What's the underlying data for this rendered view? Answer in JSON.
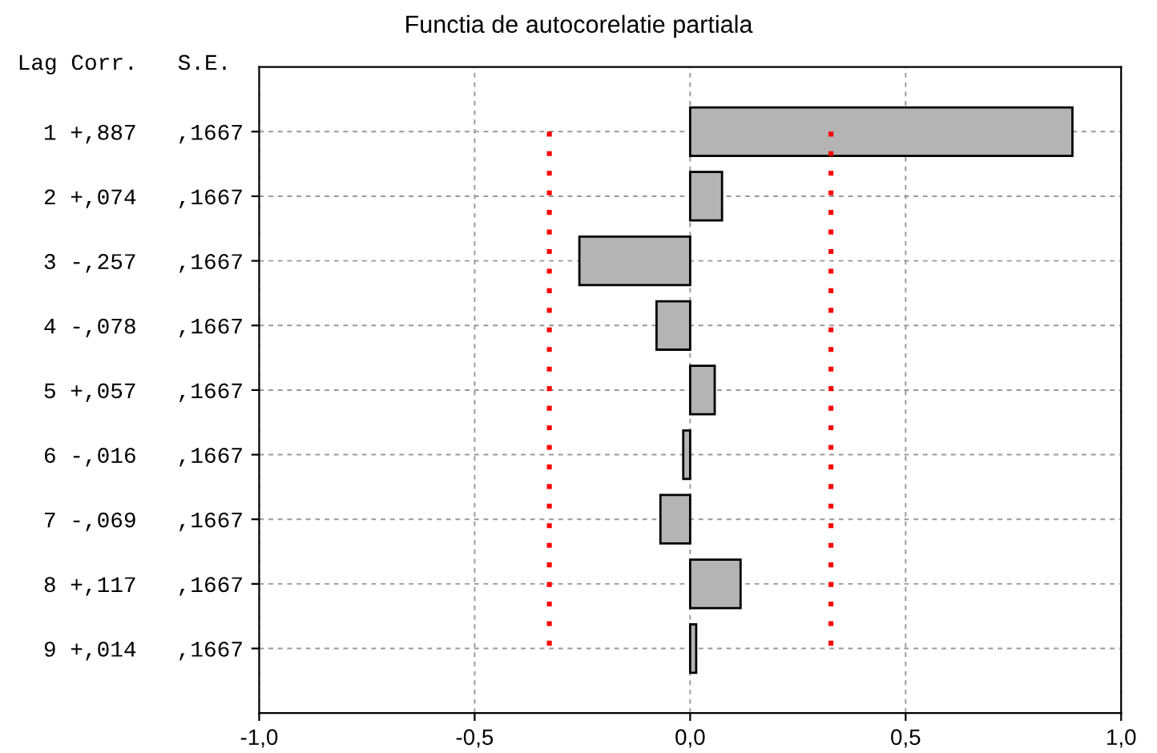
{
  "chart_data": {
    "type": "bar",
    "orientation": "horizontal",
    "title": "Functia de autocorelatie partiala",
    "annotations": [
      "Lag Corr.   S.E."
    ],
    "categories": [
      "1 +,887   ,1667",
      "2 +,074   ,1667",
      "3 -,257   ,1667",
      "4 -,078   ,1667",
      "5 +,057   ,1667",
      "6 -,016   ,1667",
      "7 -,069   ,1667",
      "8 +,117   ,1667",
      "9 +,014   ,1667"
    ],
    "values": [
      0.887,
      0.074,
      -0.257,
      -0.078,
      0.057,
      -0.016,
      -0.069,
      0.117,
      0.014
    ],
    "color": "#b4b4b4",
    "xlim": [
      -1,
      1
    ],
    "xticks": [
      {
        "value": -1,
        "label": "-1,0"
      },
      {
        "value": -0.5,
        "label": "-0,5"
      },
      {
        "value": 0,
        "label": "0,0"
      },
      {
        "value": 0.5,
        "label": "0,5"
      },
      {
        "value": 1,
        "label": "1,0"
      }
    ],
    "ref_lines": [
      {
        "axis": "x",
        "value": -0.3267,
        "label": null,
        "color": "#ff0000",
        "line_style": "dotted"
      },
      {
        "axis": "x",
        "value": 0.3267,
        "label": null,
        "color": "#ff0000",
        "line_style": "dotted"
      }
    ],
    "grid": true,
    "legend": false
  }
}
